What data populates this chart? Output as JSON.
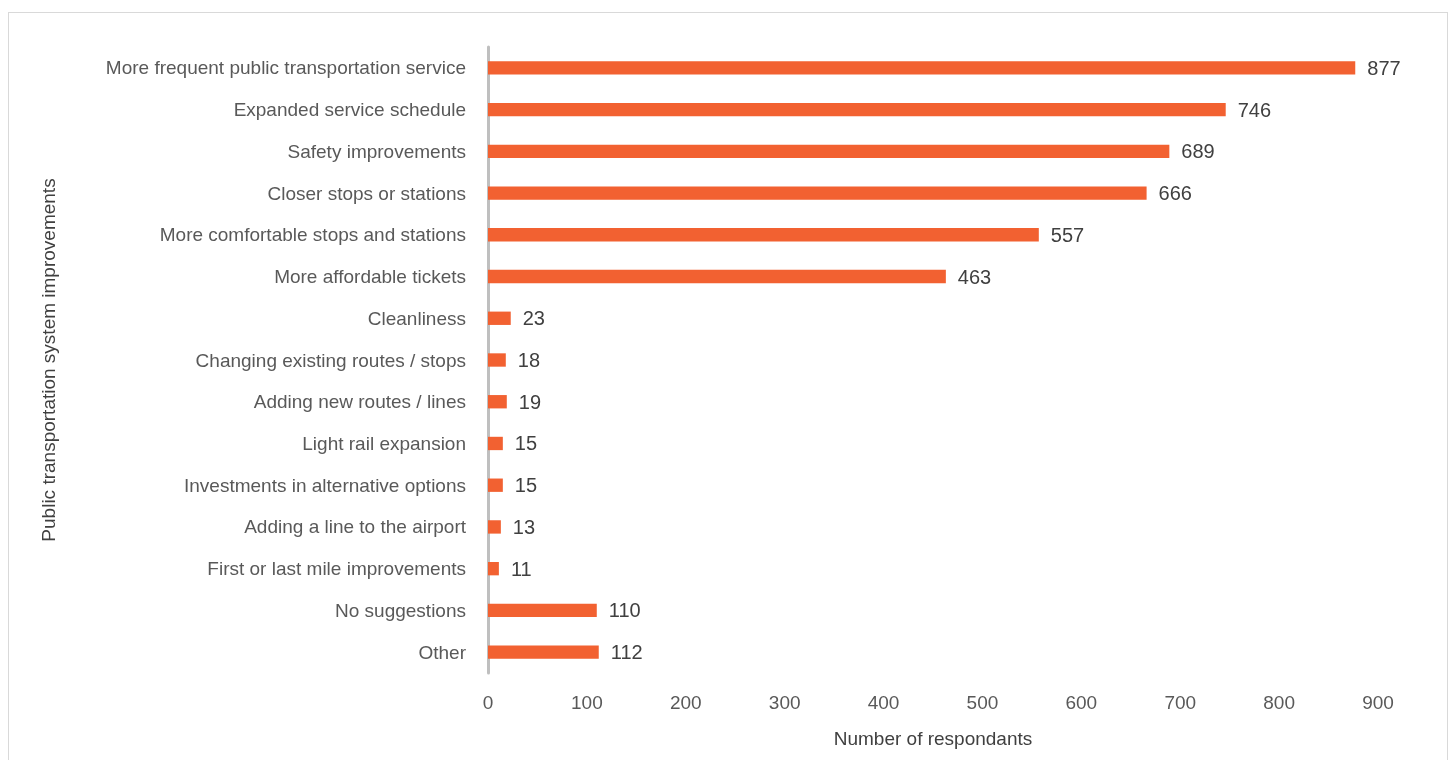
{
  "chart_data": {
    "type": "bar",
    "orientation": "horizontal",
    "categories": [
      "More frequent public transportation service",
      "Expanded service schedule",
      "Safety improvements",
      "Closer stops or stations",
      "More comfortable stops and stations",
      "More affordable tickets",
      "Cleanliness",
      "Changing existing routes / stops",
      "Adding new routes / lines",
      "Light rail expansion",
      "Investments in alternative options",
      "Adding a line to the airport",
      "First or last mile improvements",
      "No suggestions",
      "Other"
    ],
    "values": [
      877,
      746,
      689,
      666,
      557,
      463,
      23,
      18,
      19,
      15,
      15,
      13,
      11,
      110,
      112
    ],
    "color": "#f26131",
    "xlabel": "Number of respondants",
    "ylabel": "Public transportation system improvements",
    "xlim": [
      0,
      900
    ],
    "xticks": [
      0,
      100,
      200,
      300,
      400,
      500,
      600,
      700,
      800,
      900
    ],
    "data_labels": true
  }
}
